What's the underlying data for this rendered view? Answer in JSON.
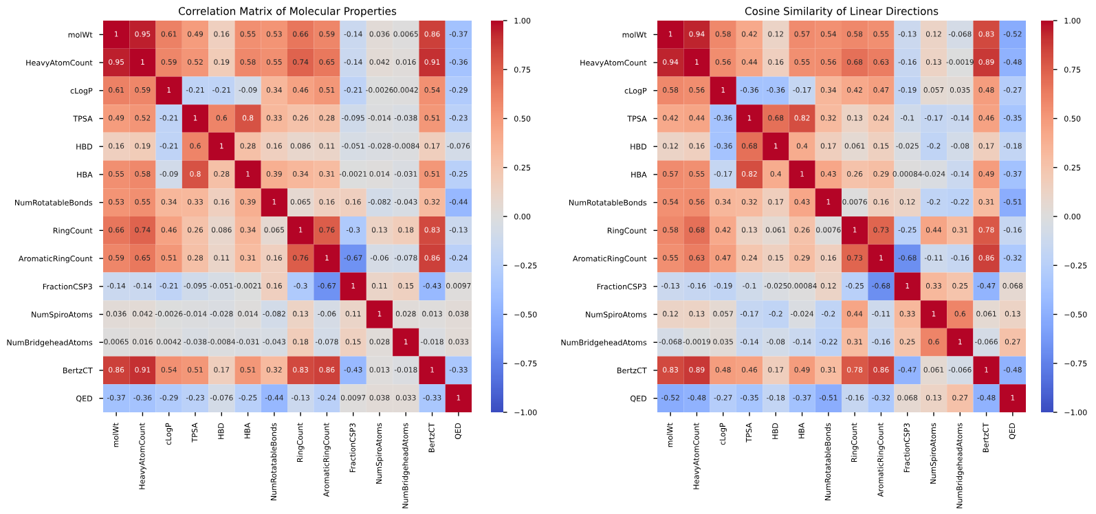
{
  "chart_data": [
    {
      "type": "heatmap",
      "title": "Correlation Matrix of Molecular Properties",
      "categories": [
        "molWt",
        "HeavyAtomCount",
        "cLogP",
        "TPSA",
        "HBD",
        "HBA",
        "NumRotatableBonds",
        "RingCount",
        "AromaticRingCount",
        "FractionCSP3",
        "NumSpiroAtoms",
        "NumBridgeheadAtoms",
        "BertzCT",
        "QED"
      ],
      "y_categories": [
        "molWt",
        "HeavyAtomCount",
        "cLogP",
        "TPSA",
        "HBD",
        "HBA",
        "NumRotatableBonds",
        "RingCount",
        "AromaticRingCount",
        "FractionCSP3",
        "NumSpiroAtoms",
        "NumBridgeheadAtoms",
        "BertzCT",
        "QED"
      ],
      "cells": [
        [
          1,
          0.95,
          0.61,
          0.49,
          0.16,
          0.55,
          0.53,
          0.66,
          0.59,
          -0.14,
          0.036,
          0.0065,
          0.86,
          -0.37
        ],
        [
          0.95,
          1,
          0.59,
          0.52,
          0.19,
          0.58,
          0.55,
          0.74,
          0.65,
          -0.14,
          0.042,
          0.016,
          0.91,
          -0.36
        ],
        [
          0.61,
          0.59,
          1,
          -0.21,
          -0.21,
          -0.09,
          0.34,
          0.46,
          0.51,
          -0.21,
          -0.0026,
          0.0042,
          0.54,
          -0.29
        ],
        [
          0.49,
          0.52,
          -0.21,
          1,
          0.6,
          0.8,
          0.33,
          0.26,
          0.28,
          -0.095,
          -0.014,
          -0.038,
          0.51,
          -0.23
        ],
        [
          0.16,
          0.19,
          -0.21,
          0.6,
          1,
          0.28,
          0.16,
          0.086,
          0.11,
          -0.051,
          -0.028,
          -0.0084,
          0.17,
          -0.076
        ],
        [
          0.55,
          0.58,
          -0.09,
          0.8,
          0.28,
          1,
          0.39,
          0.34,
          0.31,
          -0.0021,
          0.014,
          -0.031,
          0.51,
          -0.25
        ],
        [
          0.53,
          0.55,
          0.34,
          0.33,
          0.16,
          0.39,
          1,
          0.065,
          0.16,
          0.16,
          -0.082,
          -0.043,
          0.32,
          -0.44
        ],
        [
          0.66,
          0.74,
          0.46,
          0.26,
          0.086,
          0.34,
          0.065,
          1,
          0.76,
          -0.3,
          0.13,
          0.18,
          0.83,
          -0.13
        ],
        [
          0.59,
          0.65,
          0.51,
          0.28,
          0.11,
          0.31,
          0.16,
          0.76,
          1,
          -0.67,
          -0.06,
          -0.078,
          0.86,
          -0.24
        ],
        [
          -0.14,
          -0.14,
          -0.21,
          -0.095,
          -0.051,
          -0.0021,
          0.16,
          -0.3,
          -0.67,
          1,
          0.11,
          0.15,
          -0.43,
          0.0097
        ],
        [
          0.036,
          0.042,
          -0.0026,
          -0.014,
          -0.028,
          0.014,
          -0.082,
          0.13,
          -0.06,
          0.11,
          1,
          0.028,
          0.013,
          0.038
        ],
        [
          0.0065,
          0.016,
          0.0042,
          -0.038,
          -0.0084,
          -0.031,
          -0.043,
          0.18,
          -0.078,
          0.15,
          0.028,
          1,
          -0.018,
          0.033
        ],
        [
          0.86,
          0.91,
          0.54,
          0.51,
          0.17,
          0.51,
          0.32,
          0.83,
          0.86,
          -0.43,
          0.013,
          -0.018,
          1,
          -0.33
        ],
        [
          -0.37,
          -0.36,
          -0.29,
          -0.23,
          -0.076,
          -0.25,
          -0.44,
          -0.13,
          -0.24,
          0.0097,
          0.038,
          0.033,
          -0.33,
          1
        ]
      ],
      "data_labels": true,
      "clim": [
        -1.0,
        1.0
      ],
      "cticks": [
        {
          "value": -1.0,
          "label": "−1.00"
        },
        {
          "value": -0.75,
          "label": "−0.75"
        },
        {
          "value": -0.5,
          "label": "−0.50"
        },
        {
          "value": -0.25,
          "label": "−0.25"
        },
        {
          "value": 0.0,
          "label": "0.00"
        },
        {
          "value": 0.25,
          "label": "0.25"
        },
        {
          "value": 0.5,
          "label": "0.50"
        },
        {
          "value": 0.75,
          "label": "0.75"
        },
        {
          "value": 1.0,
          "label": "1.00"
        }
      ]
    },
    {
      "type": "heatmap",
      "title": "Cosine Similarity of Linear Directions",
      "categories": [
        "molWt",
        "HeavyAtomCount",
        "cLogP",
        "TPSA",
        "HBD",
        "HBA",
        "NumRotatableBonds",
        "RingCount",
        "AromaticRingCount",
        "FractionCSP3",
        "NumSpiroAtoms",
        "NumBridgeheadAtoms",
        "BertzCT",
        "QED"
      ],
      "y_categories": [
        "molWt",
        "HeavyAtomCount",
        "cLogP",
        "TPSA",
        "HBD",
        "HBA",
        "NumRotatableBonds",
        "RingCount",
        "AromaticRingCount",
        "FractionCSP3",
        "NumSpiroAtoms",
        "NumBridgeheadAtoms",
        "BertzCT",
        "QED"
      ],
      "cells": [
        [
          1,
          0.94,
          0.58,
          0.42,
          0.12,
          0.57,
          0.54,
          0.58,
          0.55,
          -0.13,
          0.12,
          -0.068,
          0.83,
          -0.52
        ],
        [
          0.94,
          1,
          0.56,
          0.44,
          0.16,
          0.55,
          0.56,
          0.68,
          0.63,
          -0.16,
          0.13,
          -0.0019,
          0.89,
          -0.48
        ],
        [
          0.58,
          0.56,
          1,
          -0.36,
          -0.36,
          -0.17,
          0.34,
          0.42,
          0.47,
          -0.19,
          0.057,
          0.035,
          0.48,
          -0.27
        ],
        [
          0.42,
          0.44,
          -0.36,
          1,
          0.68,
          0.82,
          0.32,
          0.13,
          0.24,
          -0.1,
          -0.17,
          -0.14,
          0.46,
          -0.35
        ],
        [
          0.12,
          0.16,
          -0.36,
          0.68,
          1,
          0.4,
          0.17,
          0.061,
          0.15,
          -0.025,
          -0.2,
          -0.08,
          0.17,
          -0.18
        ],
        [
          0.57,
          0.55,
          -0.17,
          0.82,
          0.4,
          1,
          0.43,
          0.26,
          0.29,
          0.00084,
          -0.024,
          -0.14,
          0.49,
          -0.37
        ],
        [
          0.54,
          0.56,
          0.34,
          0.32,
          0.17,
          0.43,
          1,
          0.0076,
          0.16,
          0.12,
          -0.2,
          -0.22,
          0.31,
          -0.51
        ],
        [
          0.58,
          0.68,
          0.42,
          0.13,
          0.061,
          0.26,
          0.0076,
          1,
          0.73,
          -0.25,
          0.44,
          0.31,
          0.78,
          -0.16
        ],
        [
          0.55,
          0.63,
          0.47,
          0.24,
          0.15,
          0.29,
          0.16,
          0.73,
          1,
          -0.68,
          -0.11,
          -0.16,
          0.86,
          -0.32
        ],
        [
          -0.13,
          -0.16,
          -0.19,
          -0.1,
          -0.025,
          0.00084,
          0.12,
          -0.25,
          -0.68,
          1,
          0.33,
          0.25,
          -0.47,
          0.068
        ],
        [
          0.12,
          0.13,
          0.057,
          -0.17,
          -0.2,
          -0.024,
          -0.2,
          0.44,
          -0.11,
          0.33,
          1,
          0.6,
          0.061,
          0.13
        ],
        [
          -0.068,
          -0.0019,
          0.035,
          -0.14,
          -0.08,
          -0.14,
          -0.22,
          0.31,
          -0.16,
          0.25,
          0.6,
          1,
          -0.066,
          0.27
        ],
        [
          0.83,
          0.89,
          0.48,
          0.46,
          0.17,
          0.49,
          0.31,
          0.78,
          0.86,
          -0.47,
          0.061,
          -0.066,
          1,
          -0.48
        ],
        [
          -0.52,
          -0.48,
          -0.27,
          -0.35,
          -0.18,
          -0.37,
          -0.51,
          -0.16,
          -0.32,
          0.068,
          0.13,
          0.27,
          -0.48,
          1
        ]
      ],
      "data_labels": true,
      "clim": [
        -1.0,
        1.0
      ],
      "cticks": [
        {
          "value": -1.0,
          "label": "−1.00"
        },
        {
          "value": -0.75,
          "label": "−0.75"
        },
        {
          "value": -0.5,
          "label": "−0.50"
        },
        {
          "value": -0.25,
          "label": "−0.25"
        },
        {
          "value": 0.0,
          "label": "0.00"
        },
        {
          "value": 0.25,
          "label": "0.25"
        },
        {
          "value": 0.5,
          "label": "0.50"
        },
        {
          "value": 0.75,
          "label": "0.75"
        },
        {
          "value": 1.0,
          "label": "1.00"
        }
      ]
    }
  ]
}
